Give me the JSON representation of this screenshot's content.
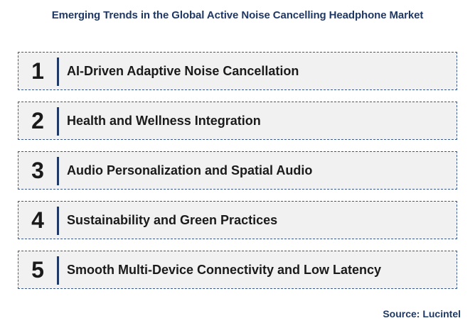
{
  "title": "Emerging Trends in the Global Active Noise Cancelling Headphone Market",
  "trends": [
    {
      "number": "1",
      "label": "AI-Driven Adaptive Noise Cancellation"
    },
    {
      "number": "2",
      "label": "Health and Wellness Integration"
    },
    {
      "number": "3",
      "label": "Audio Personalization and Spatial Audio"
    },
    {
      "number": "4",
      "label": "Sustainability and Green Practices"
    },
    {
      "number": "5",
      "label": "Smooth Multi-Device Connectivity and Low Latency"
    }
  ],
  "source": "Source: Lucintel",
  "colors": {
    "accent": "#1f3864",
    "box_background": "#f1f1f1",
    "text": "#1a1a1a"
  }
}
